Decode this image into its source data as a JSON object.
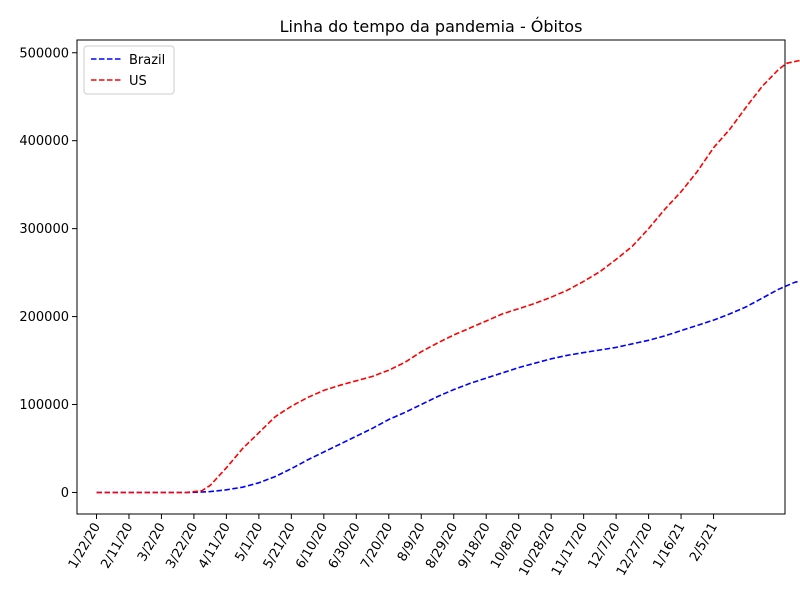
{
  "chart_data": {
    "type": "line",
    "title": "Linha do tempo da pandemia - Óbitos",
    "xlabel": "",
    "ylabel": "",
    "x_tick_labels": [
      "1/22/20",
      "2/11/20",
      "3/2/20",
      "3/22/20",
      "4/11/20",
      "5/1/20",
      "5/21/20",
      "6/10/20",
      "6/30/20",
      "7/20/20",
      "8/9/20",
      "8/29/20",
      "9/18/20",
      "10/8/20",
      "10/28/20",
      "11/17/20",
      "12/7/20",
      "12/27/20",
      "1/16/21",
      "2/5/21"
    ],
    "y_ticks": [
      0,
      100000,
      200000,
      300000,
      400000,
      500000
    ],
    "y_tick_labels": [
      "0",
      "100000",
      "200000",
      "300000",
      "400000",
      "500000"
    ],
    "xlim_days": [
      -12,
      424
    ],
    "ylim": [
      -24500,
      514500
    ],
    "grid": false,
    "legend_position": "upper-left",
    "series": [
      {
        "name": "Brazil",
        "color": "#0000ff",
        "line_style": "dashed",
        "points": [
          [
            0,
            0
          ],
          [
            55,
            0
          ],
          [
            60,
            200
          ],
          [
            70,
            1000
          ],
          [
            80,
            3000
          ],
          [
            90,
            6000
          ],
          [
            100,
            11000
          ],
          [
            110,
            18000
          ],
          [
            120,
            27000
          ],
          [
            130,
            37000
          ],
          [
            140,
            46000
          ],
          [
            150,
            55000
          ],
          [
            160,
            64000
          ],
          [
            170,
            73000
          ],
          [
            180,
            83000
          ],
          [
            190,
            91000
          ],
          [
            200,
            100000
          ],
          [
            210,
            109000
          ],
          [
            220,
            117000
          ],
          [
            230,
            124000
          ],
          [
            240,
            130000
          ],
          [
            250,
            136000
          ],
          [
            260,
            142000
          ],
          [
            270,
            147000
          ],
          [
            280,
            152000
          ],
          [
            290,
            156000
          ],
          [
            300,
            159000
          ],
          [
            310,
            162000
          ],
          [
            320,
            165000
          ],
          [
            330,
            169000
          ],
          [
            340,
            173000
          ],
          [
            350,
            178000
          ],
          [
            360,
            184000
          ],
          [
            370,
            190000
          ],
          [
            380,
            196000
          ],
          [
            390,
            203000
          ],
          [
            400,
            211000
          ],
          [
            410,
            221000
          ],
          [
            420,
            231000
          ],
          [
            430,
            239000
          ],
          [
            435,
            241000
          ]
        ]
      },
      {
        "name": "US",
        "color": "#ff0000",
        "line_style": "dashed",
        "points": [
          [
            0,
            0
          ],
          [
            55,
            0
          ],
          [
            65,
            2000
          ],
          [
            70,
            8000
          ],
          [
            80,
            28000
          ],
          [
            90,
            50000
          ],
          [
            100,
            68000
          ],
          [
            110,
            86000
          ],
          [
            120,
            98000
          ],
          [
            130,
            108000
          ],
          [
            140,
            116000
          ],
          [
            150,
            122000
          ],
          [
            160,
            127000
          ],
          [
            170,
            132000
          ],
          [
            180,
            139000
          ],
          [
            190,
            148000
          ],
          [
            200,
            160000
          ],
          [
            210,
            170000
          ],
          [
            220,
            179000
          ],
          [
            230,
            187000
          ],
          [
            240,
            195000
          ],
          [
            250,
            203000
          ],
          [
            260,
            209000
          ],
          [
            270,
            215000
          ],
          [
            280,
            222000
          ],
          [
            290,
            230000
          ],
          [
            300,
            240000
          ],
          [
            310,
            251000
          ],
          [
            320,
            265000
          ],
          [
            330,
            280000
          ],
          [
            340,
            300000
          ],
          [
            350,
            322000
          ],
          [
            360,
            342000
          ],
          [
            370,
            365000
          ],
          [
            380,
            392000
          ],
          [
            390,
            413000
          ],
          [
            400,
            438000
          ],
          [
            410,
            462000
          ],
          [
            420,
            481000
          ],
          [
            425,
            488000
          ],
          [
            435,
            492000
          ]
        ]
      }
    ]
  }
}
